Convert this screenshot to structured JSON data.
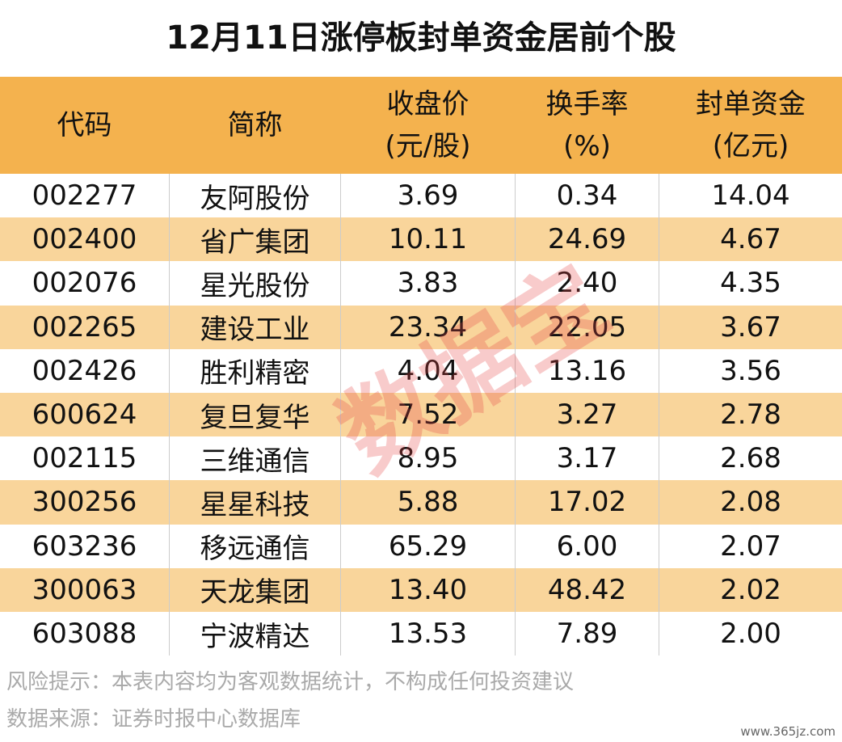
{
  "header": {
    "title": "12月11日涨停板封单资金居前个股"
  },
  "table": {
    "columns": [
      [
        "代码"
      ],
      [
        "简称"
      ],
      [
        "收盘价",
        "(元/股)"
      ],
      [
        "换手率",
        "(%)"
      ],
      [
        "封单资金",
        "(亿元)"
      ]
    ],
    "rows": [
      [
        "002277",
        "友阿股份",
        "3.69",
        "0.34",
        "14.04"
      ],
      [
        "002400",
        "省广集团",
        "10.11",
        "24.69",
        "4.67"
      ],
      [
        "002076",
        "星光股份",
        "3.83",
        "2.40",
        "4.35"
      ],
      [
        "002265",
        "建设工业",
        "23.34",
        "22.05",
        "3.67"
      ],
      [
        "002426",
        "胜利精密",
        "4.04",
        "13.16",
        "3.56"
      ],
      [
        "600624",
        "复旦复华",
        "7.52",
        "3.27",
        "2.78"
      ],
      [
        "002115",
        "三维通信",
        "8.95",
        "3.17",
        "2.68"
      ],
      [
        "300256",
        "星星科技",
        "5.88",
        "17.02",
        "2.08"
      ],
      [
        "603236",
        "移远通信",
        "65.29",
        "6.00",
        "2.07"
      ],
      [
        "300063",
        "天龙集团",
        "13.40",
        "48.42",
        "2.02"
      ],
      [
        "603088",
        "宁波精达",
        "13.53",
        "7.89",
        "2.00"
      ]
    ]
  },
  "footer": {
    "notes": [
      "风险提示：本表内容均为客观数据统计，不构成任何投资建议",
      "数据来源：证券时报中心数据库"
    ]
  },
  "watermark": "数据宝",
  "site": "www.365jz.com"
}
